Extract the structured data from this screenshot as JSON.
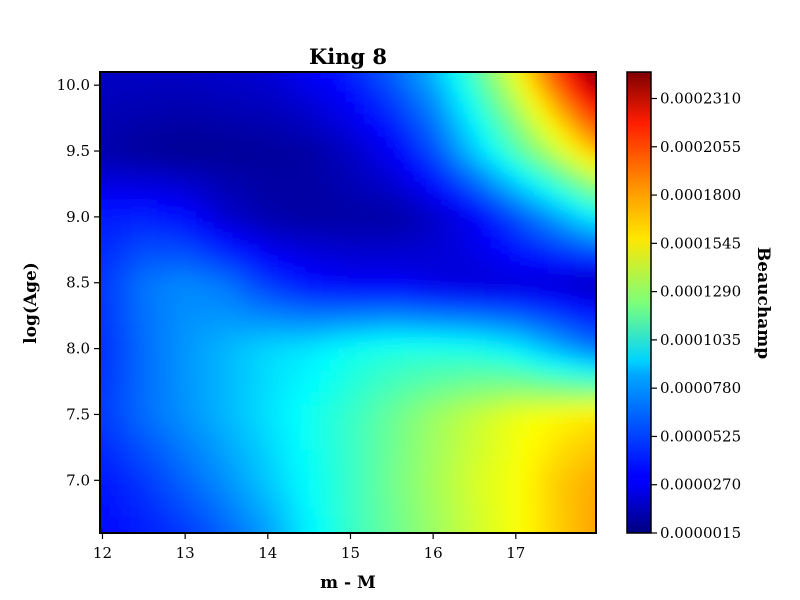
{
  "chart_data": {
    "type": "heatmap",
    "title": "King 8",
    "xlabel": "m - M",
    "ylabel": "log(Age)",
    "xlim": [
      11.97,
      17.97
    ],
    "ylim": [
      6.6,
      10.1
    ],
    "x_ticks": [
      12,
      13,
      14,
      15,
      16,
      17
    ],
    "x_tick_labels": [
      "12",
      "13",
      "14",
      "15",
      "16",
      "17"
    ],
    "y_ticks": [
      7.0,
      7.5,
      8.0,
      8.5,
      9.0,
      9.5,
      10.0
    ],
    "y_tick_labels": [
      "7.0",
      "7.5",
      "8.0",
      "8.5",
      "9.0",
      "9.5",
      "10.0"
    ],
    "colorbar": {
      "label": "Beauchamp",
      "colormap": "jet",
      "range": [
        1.5e-06,
        0.000245
      ],
      "ticks": [
        1.5e-06,
        2.7e-05,
        5.25e-05,
        7.8e-05,
        0.0001035,
        0.000129,
        0.0001545,
        0.00018,
        0.0002055,
        0.000231
      ],
      "tick_labels": [
        "0.0000015",
        "0.0000270",
        "0.0000525",
        "0.0000780",
        "0.0001035",
        "0.0001290",
        "0.0001545",
        "0.0001800",
        "0.0002055",
        "0.0002310"
      ]
    },
    "grid": false,
    "z_grid": {
      "x": [
        12,
        12.5,
        13,
        13.5,
        14,
        14.5,
        15,
        15.5,
        16,
        16.5,
        17,
        17.5,
        17.97
      ],
      "y": [
        6.6,
        7.0,
        7.5,
        8.0,
        8.5,
        9.0,
        9.5,
        10.1
      ],
      "z": [
        [
          3.3e-05,
          3.8e-05,
          4.5e-05,
          5.6e-05,
          7e-05,
          9e-05,
          0.000106,
          0.000118,
          0.00013,
          0.000142,
          0.000152,
          0.000165,
          0.000176
        ],
        [
          3.7e-05,
          4.5e-05,
          5.6e-05,
          6.7e-05,
          8e-05,
          9.4e-05,
          0.000106,
          0.00012,
          0.000132,
          0.000144,
          0.000152,
          0.000166,
          0.000174
        ],
        [
          4.6e-05,
          5.8e-05,
          6.7e-05,
          7.6e-05,
          8.6e-05,
          9.6e-05,
          0.000106,
          0.000118,
          0.00013,
          0.00014,
          0.00015,
          0.000155,
          0.00016
        ],
        [
          4.3e-05,
          5.8e-05,
          6.8e-05,
          7.6e-05,
          8.4e-05,
          8.8e-05,
          9.6e-05,
          0.0001,
          0.0001,
          9.8e-05,
          9e-05,
          7.4e-05,
          6e-05
        ],
        [
          4.5e-05,
          6e-05,
          6.5e-05,
          6e-05,
          4.5e-05,
          3.5e-05,
          3e-05,
          3e-05,
          2.5e-05,
          2.2e-05,
          2.2e-05,
          2e-05,
          1.5e-05
        ],
        [
          3.8e-05,
          4e-05,
          3.5e-05,
          2e-05,
          1.2e-05,
          1e-05,
          1e-05,
          1e-05,
          1.8e-05,
          3e-05,
          5e-05,
          7e-05,
          9e-05
        ],
        [
          1.2e-05,
          8e-06,
          6e-06,
          7e-06,
          8e-06,
          1e-05,
          1.8e-05,
          3e-05,
          5e-05,
          8e-05,
          0.00011,
          0.00014,
          0.00017
        ],
        [
          1.8e-05,
          1.8e-05,
          1.8e-05,
          2e-05,
          2.2e-05,
          3e-05,
          4e-05,
          5.5e-05,
          7.5e-05,
          0.00011,
          0.00015,
          0.0002,
          0.000245
        ]
      ]
    }
  }
}
